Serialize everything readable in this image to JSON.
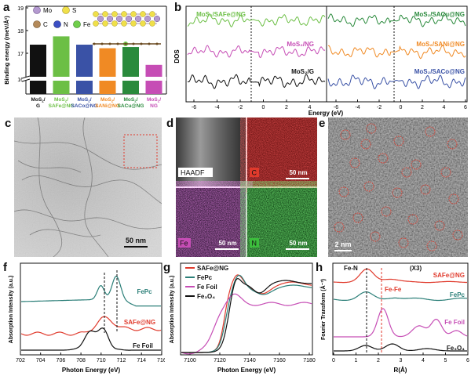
{
  "panel_labels": {
    "a": "a",
    "b": "b",
    "c": "c",
    "d": "d",
    "e": "e",
    "f": "f",
    "g": "g",
    "h": "h"
  },
  "colors": {
    "black": "#111111",
    "green_light": "#6cbf45",
    "blue": "#3a52a6",
    "orange": "#f08a24",
    "green_dark": "#2a8a3c",
    "magenta": "#c64db5",
    "teal": "#2b7f78",
    "red": "#e03a2c"
  },
  "panel_a": {
    "ylabel": "Binding energy (meV/Å²)",
    "legend": {
      "mo": "Mo",
      "s": "S",
      "c": "C",
      "n": "N",
      "fe": "Fe"
    },
    "ticks": [
      "16",
      "17",
      "18",
      "19"
    ],
    "chart_data": {
      "type": "bar",
      "categories": [
        "MoS2/G",
        "MoS2/SAFe@NG",
        "MoS2/SACo@NG",
        "MoS2/SANi@NG",
        "MoS2/SACu@NG",
        "MoS2/NG"
      ],
      "values": [
        17.45,
        17.8,
        17.45,
        17.3,
        17.35,
        16.6
      ],
      "ylim": [
        16,
        19
      ]
    },
    "xlabels": [
      {
        "l1": "MoS",
        "sub": "2",
        "l2": "/",
        "l3": "G"
      },
      {
        "l1": "MoS",
        "sub": "2",
        "l2": "/",
        "l3": "SAFe@NG"
      },
      {
        "l1": "MoS",
        "sub": "2",
        "l2": "/",
        "l3": "SACo@NG"
      },
      {
        "l1": "MoS",
        "sub": "2",
        "l2": "/",
        "l3": "SANi@NG"
      },
      {
        "l1": "MoS",
        "sub": "2",
        "l2": "/",
        "l3": "SACu@NG"
      },
      {
        "l1": "MoS",
        "sub": "2",
        "l2": "/",
        "l3": "NG"
      }
    ]
  },
  "panel_b": {
    "ylabel": "DOS",
    "xlabel": "Energy (eV)",
    "ticks_left": [
      "-6",
      "-4",
      "-2",
      "0",
      "2",
      "4"
    ],
    "ticks_right": [
      "-6",
      "-4",
      "-2",
      "0",
      "2",
      "4",
      "6"
    ],
    "curves_left": [
      {
        "name": "MoS2/SAFe@NG",
        "label": "MoS₂/SAFe@NG"
      },
      {
        "name": "MoS2/NG",
        "label": "MoS₂/NG"
      },
      {
        "name": "MoS2/G",
        "label": "MoS₂/G"
      }
    ],
    "curves_right": [
      {
        "name": "MoS2/SACu@NG",
        "label": "MoS₂/SACu@NG"
      },
      {
        "name": "MoS2/SANi@NG",
        "label": "MoS₂/SANi@NG"
      },
      {
        "name": "MoS2/SACo@NG",
        "label": "MoS₂/SACo@NG"
      }
    ]
  },
  "panel_c": {
    "scale": "50 nm"
  },
  "panel_d": {
    "haadf": "HAADF",
    "c": "C",
    "fe": "Fe",
    "n": "N",
    "scale1": "50 nm",
    "scale2": "50 nm",
    "scale3": "50 nm"
  },
  "panel_e": {
    "scale": "2 nm"
  },
  "panel_f": {
    "ylabel": "Absorption Intensity (a.u.)",
    "xlabel": "Photon Energy (eV)",
    "ticks": [
      "702",
      "704",
      "706",
      "708",
      "710",
      "712",
      "714",
      "716"
    ],
    "labels": {
      "fepc": "FePc",
      "safe": "SAFe@NG",
      "fefoil": "Fe Foil"
    }
  },
  "panel_g": {
    "ylabel": "Absorption Intensity (a.u.)",
    "xlabel": "Photon Energy (eV)",
    "ticks": [
      "7100",
      "7120",
      "7140",
      "7160",
      "7180"
    ],
    "legend": [
      "SAFe@NG",
      "FePc",
      "Fe Foil",
      "Fe₃O₄"
    ]
  },
  "panel_h": {
    "ylabel": "Fourier Transform (Å⁻³)",
    "xlabel": "R(Å)",
    "ticks": [
      "0",
      "1",
      "2",
      "3",
      "4",
      "5",
      "6"
    ],
    "ann": {
      "fen": "Fe-N",
      "fefe": "Fe-Fe",
      "x3": "(X3)"
    },
    "labels": {
      "safe": "SAFe@NG",
      "fepc": "FePc",
      "fefoil": "Fe Foil",
      "fe3o4": "Fe₃O₄"
    }
  }
}
